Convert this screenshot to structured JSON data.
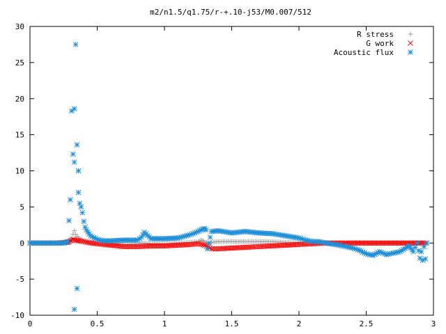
{
  "chart_data": {
    "type": "scatter",
    "title": "m2/n1.5/q1.75/r-+.10-j53/M0.007/512",
    "xlabel": "",
    "ylabel": "",
    "xlim": [
      0,
      3
    ],
    "ylim": [
      -10,
      30
    ],
    "x_ticks": [
      0,
      0.5,
      1,
      1.5,
      2,
      2.5,
      3
    ],
    "x_tick_labels": [
      "0",
      "0.5",
      "1",
      "1.5",
      "2",
      "2.5",
      "3"
    ],
    "y_ticks": [
      -10,
      -5,
      0,
      5,
      10,
      15,
      20,
      25,
      30
    ],
    "y_tick_labels": [
      "-10",
      "-5",
      "0",
      "5",
      "10",
      "15",
      "20",
      "25",
      "30"
    ],
    "legend_position": "top-right",
    "grid": false,
    "series": [
      {
        "name": "R stress",
        "marker": "plus",
        "color": "#a0a0a0",
        "x": [
          0.0,
          0.1,
          0.2,
          0.28,
          0.3,
          0.31,
          0.32,
          0.33,
          0.34,
          0.35,
          0.36,
          0.38,
          0.4,
          0.45,
          0.5,
          0.6,
          0.7,
          0.8,
          0.85,
          0.9,
          1.0,
          1.1,
          1.2,
          1.25,
          1.28,
          1.3,
          1.32,
          1.35,
          1.4,
          1.5,
          1.6,
          1.7,
          1.8,
          1.9,
          2.0,
          2.1,
          2.2,
          2.3,
          2.4,
          2.5,
          2.6,
          2.7,
          2.8,
          2.9,
          2.94
        ],
        "y": [
          0.0,
          0.0,
          0.0,
          0.05,
          0.2,
          0.6,
          1.2,
          1.7,
          1.2,
          0.9,
          0.7,
          0.5,
          0.3,
          0.1,
          0.0,
          -0.1,
          -0.2,
          -0.1,
          0.0,
          -0.1,
          -0.1,
          0.0,
          0.1,
          0.2,
          0.4,
          0.1,
          -0.2,
          0.1,
          0.2,
          0.2,
          0.2,
          0.2,
          0.2,
          0.1,
          0.0,
          0.0,
          0.0,
          0.0,
          0.0,
          0.0,
          0.0,
          0.0,
          0.0,
          0.0,
          0.0
        ]
      },
      {
        "name": "G work",
        "marker": "cross",
        "color": "#ff0000",
        "x": [
          0.0,
          0.1,
          0.2,
          0.28,
          0.3,
          0.32,
          0.34,
          0.36,
          0.4,
          0.45,
          0.5,
          0.6,
          0.7,
          0.8,
          0.9,
          1.0,
          1.1,
          1.2,
          1.25,
          1.3,
          1.35,
          1.4,
          1.5,
          1.6,
          1.7,
          1.8,
          1.9,
          2.0,
          2.1,
          2.2,
          2.3,
          2.4,
          2.5,
          2.6,
          2.7,
          2.8,
          2.9,
          2.95
        ],
        "y": [
          0.0,
          0.0,
          0.0,
          0.1,
          0.3,
          0.5,
          0.4,
          0.3,
          0.2,
          0.0,
          -0.1,
          -0.3,
          -0.5,
          -0.5,
          -0.4,
          -0.4,
          -0.3,
          -0.2,
          -0.1,
          -0.3,
          -0.8,
          -0.8,
          -0.7,
          -0.6,
          -0.5,
          -0.4,
          -0.3,
          -0.2,
          -0.1,
          0.0,
          0.0,
          0.0,
          0.0,
          0.0,
          0.0,
          0.0,
          0.0,
          0.0
        ]
      },
      {
        "name": "Acoustic flux",
        "marker": "star",
        "color": "#1f8fd8",
        "x": [
          0.0,
          0.05,
          0.1,
          0.15,
          0.2,
          0.25,
          0.28,
          0.3,
          0.31,
          0.32,
          0.33,
          0.33,
          0.34,
          0.35,
          0.35,
          0.36,
          0.36,
          0.37,
          0.38,
          0.39,
          0.4,
          0.41,
          0.42,
          0.45,
          0.5,
          0.55,
          0.6,
          0.7,
          0.8,
          0.83,
          0.85,
          0.9,
          1.0,
          1.1,
          1.2,
          1.25,
          1.28,
          1.3,
          1.31,
          1.32,
          1.35,
          1.4,
          1.5,
          1.6,
          1.7,
          1.8,
          1.9,
          2.0,
          2.05,
          2.1,
          2.15,
          2.2,
          2.3,
          2.4,
          2.45,
          2.5,
          2.55,
          2.6,
          2.65,
          2.7,
          2.75,
          2.8,
          2.82,
          2.85,
          2.88,
          2.9,
          2.91,
          2.92,
          2.93,
          2.94,
          2.95
        ],
        "y": [
          0.0,
          0.0,
          0.0,
          0.0,
          0.0,
          0.0,
          0.2,
          6.0,
          18.3,
          12.3,
          18.6,
          11.2,
          27.5,
          13.6,
          -6.3,
          10.0,
          7.0,
          5.5,
          5.0,
          4.2,
          3.0,
          2.2,
          1.8,
          1.0,
          0.5,
          0.3,
          0.3,
          0.4,
          0.4,
          0.8,
          1.5,
          0.6,
          0.6,
          0.7,
          1.2,
          1.6,
          1.9,
          2.0,
          1.8,
          -0.8,
          1.6,
          1.7,
          1.4,
          1.6,
          1.4,
          1.3,
          1.0,
          0.7,
          0.4,
          0.2,
          0.2,
          0.0,
          -0.3,
          -0.7,
          -1.0,
          -1.5,
          -1.7,
          -1.2,
          -1.6,
          -1.4,
          -1.2,
          -0.6,
          -0.4,
          -1.2,
          0.0,
          -2.1,
          -1.2,
          -2.4,
          -0.5,
          -2.2,
          0.0
        ]
      }
    ],
    "extra_points": {
      "Acoustic flux_low": {
        "x": [
          0.33
        ],
        "y": [
          -9.2
        ]
      }
    }
  }
}
